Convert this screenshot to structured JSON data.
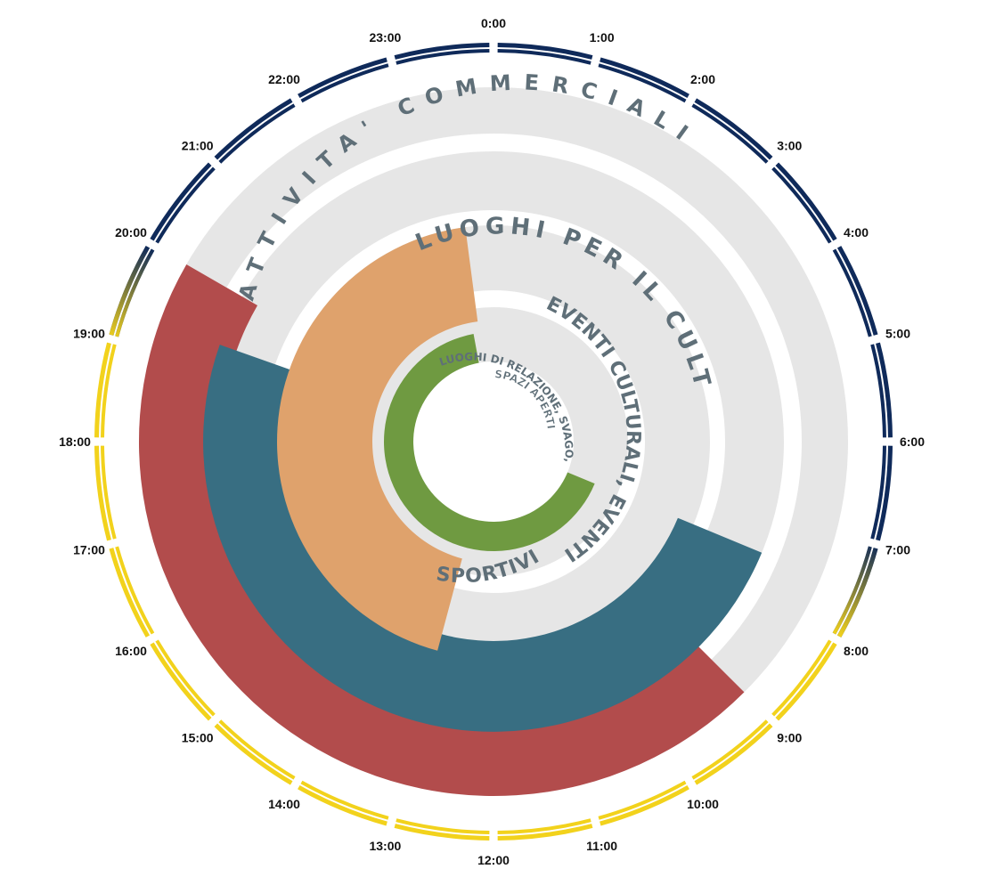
{
  "chart_data": {
    "type": "radial-clock",
    "hours": [
      "0:00",
      "1:00",
      "2:00",
      "3:00",
      "4:00",
      "5:00",
      "6:00",
      "7:00",
      "8:00",
      "9:00",
      "10:00",
      "11:00",
      "12:00",
      "13:00",
      "14:00",
      "15:00",
      "16:00",
      "17:00",
      "18:00",
      "19:00",
      "20:00",
      "21:00",
      "22:00",
      "23:00"
    ],
    "day_color": "#f2d21c",
    "night_color": "#0f2a5a",
    "track_color": "#e6e6e6",
    "daylight": {
      "start": 7.5,
      "end": 19.5
    },
    "series": [
      {
        "name": "ATTIVITA' COMMERCIALI",
        "start": 9,
        "end": 20,
        "color": "#b24c4c"
      },
      {
        "name": "LUOGHI PER IL CULTO",
        "start": 7.5,
        "end": 19.3,
        "color": "#386e82"
      },
      {
        "name": "EVENTI CULTURALI, EVENTI SPORTIVI",
        "start": 13,
        "end": 23.5,
        "color": "#dfa26c"
      },
      {
        "name": "LUOGHI DI RELAZIONE, SVAGO,",
        "start": 7.5,
        "end": 23.3,
        "color": "#6f9a41"
      },
      {
        "name": "SPAZI APERTI",
        "start": 0,
        "end": 0,
        "color": "#ffffff"
      }
    ]
  }
}
